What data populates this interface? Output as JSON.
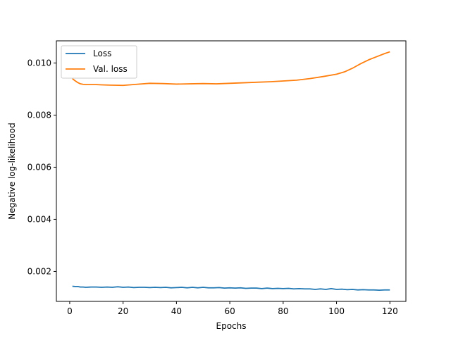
{
  "chart_data": {
    "type": "line",
    "title": "",
    "xlabel": "Epochs",
    "ylabel": "Negative log-likelihood",
    "xlim": [
      -5,
      126
    ],
    "ylim": [
      0.00085,
      0.01085
    ],
    "xticks": [
      0,
      20,
      40,
      60,
      80,
      100,
      120
    ],
    "xtick_labels": [
      "0",
      "20",
      "40",
      "60",
      "80",
      "100",
      "120"
    ],
    "yticks": [
      0.002,
      0.004,
      0.006,
      0.008,
      0.01
    ],
    "ytick_labels": [
      "0.002",
      "0.004",
      "0.006",
      "0.008",
      "0.010"
    ],
    "grid": false,
    "legend": "top-left",
    "series": [
      {
        "name": "Loss",
        "color": "#1f77b4",
        "x": [
          1,
          2,
          3,
          4,
          5,
          6,
          8,
          10,
          12,
          14,
          16,
          18,
          20,
          22,
          24,
          26,
          28,
          30,
          32,
          34,
          36,
          38,
          40,
          42,
          44,
          46,
          48,
          50,
          52,
          54,
          56,
          58,
          60,
          62,
          64,
          66,
          68,
          70,
          72,
          74,
          76,
          78,
          80,
          82,
          84,
          86,
          88,
          90,
          92,
          94,
          96,
          98,
          100,
          102,
          104,
          106,
          108,
          110,
          112,
          114,
          116,
          118,
          120
        ],
        "y": [
          0.00143,
          0.00142,
          0.00142,
          0.0014,
          0.0014,
          0.00139,
          0.0014,
          0.0014,
          0.00139,
          0.0014,
          0.00139,
          0.00141,
          0.00139,
          0.0014,
          0.00138,
          0.00139,
          0.00139,
          0.00138,
          0.00139,
          0.00138,
          0.00139,
          0.00137,
          0.00138,
          0.00139,
          0.00137,
          0.00139,
          0.00137,
          0.00139,
          0.00137,
          0.00137,
          0.00138,
          0.00136,
          0.00137,
          0.00136,
          0.00137,
          0.00135,
          0.00136,
          0.00136,
          0.00134,
          0.00136,
          0.00134,
          0.00135,
          0.00134,
          0.00135,
          0.00133,
          0.00134,
          0.00133,
          0.00133,
          0.00131,
          0.00133,
          0.00131,
          0.00134,
          0.00131,
          0.00132,
          0.0013,
          0.00131,
          0.00129,
          0.0013,
          0.00129,
          0.00129,
          0.00128,
          0.00129,
          0.00129
        ]
      },
      {
        "name": "Val. loss",
        "color": "#ff7f0e",
        "x": [
          1,
          2,
          3,
          4,
          5,
          6,
          8,
          10,
          12,
          15,
          20,
          25,
          30,
          35,
          40,
          45,
          50,
          55,
          60,
          65,
          70,
          75,
          80,
          85,
          90,
          95,
          100,
          103,
          106,
          109,
          112,
          115,
          118,
          120
        ],
        "y": [
          0.0094,
          0.00932,
          0.00925,
          0.0092,
          0.00918,
          0.00917,
          0.00917,
          0.00917,
          0.00916,
          0.00915,
          0.00914,
          0.00918,
          0.00922,
          0.00921,
          0.00919,
          0.0092,
          0.00921,
          0.0092,
          0.00922,
          0.00924,
          0.00926,
          0.00928,
          0.00931,
          0.00934,
          0.0094,
          0.00948,
          0.00957,
          0.00966,
          0.0098,
          0.00997,
          0.01012,
          0.01024,
          0.01036,
          0.01043
        ]
      }
    ]
  }
}
